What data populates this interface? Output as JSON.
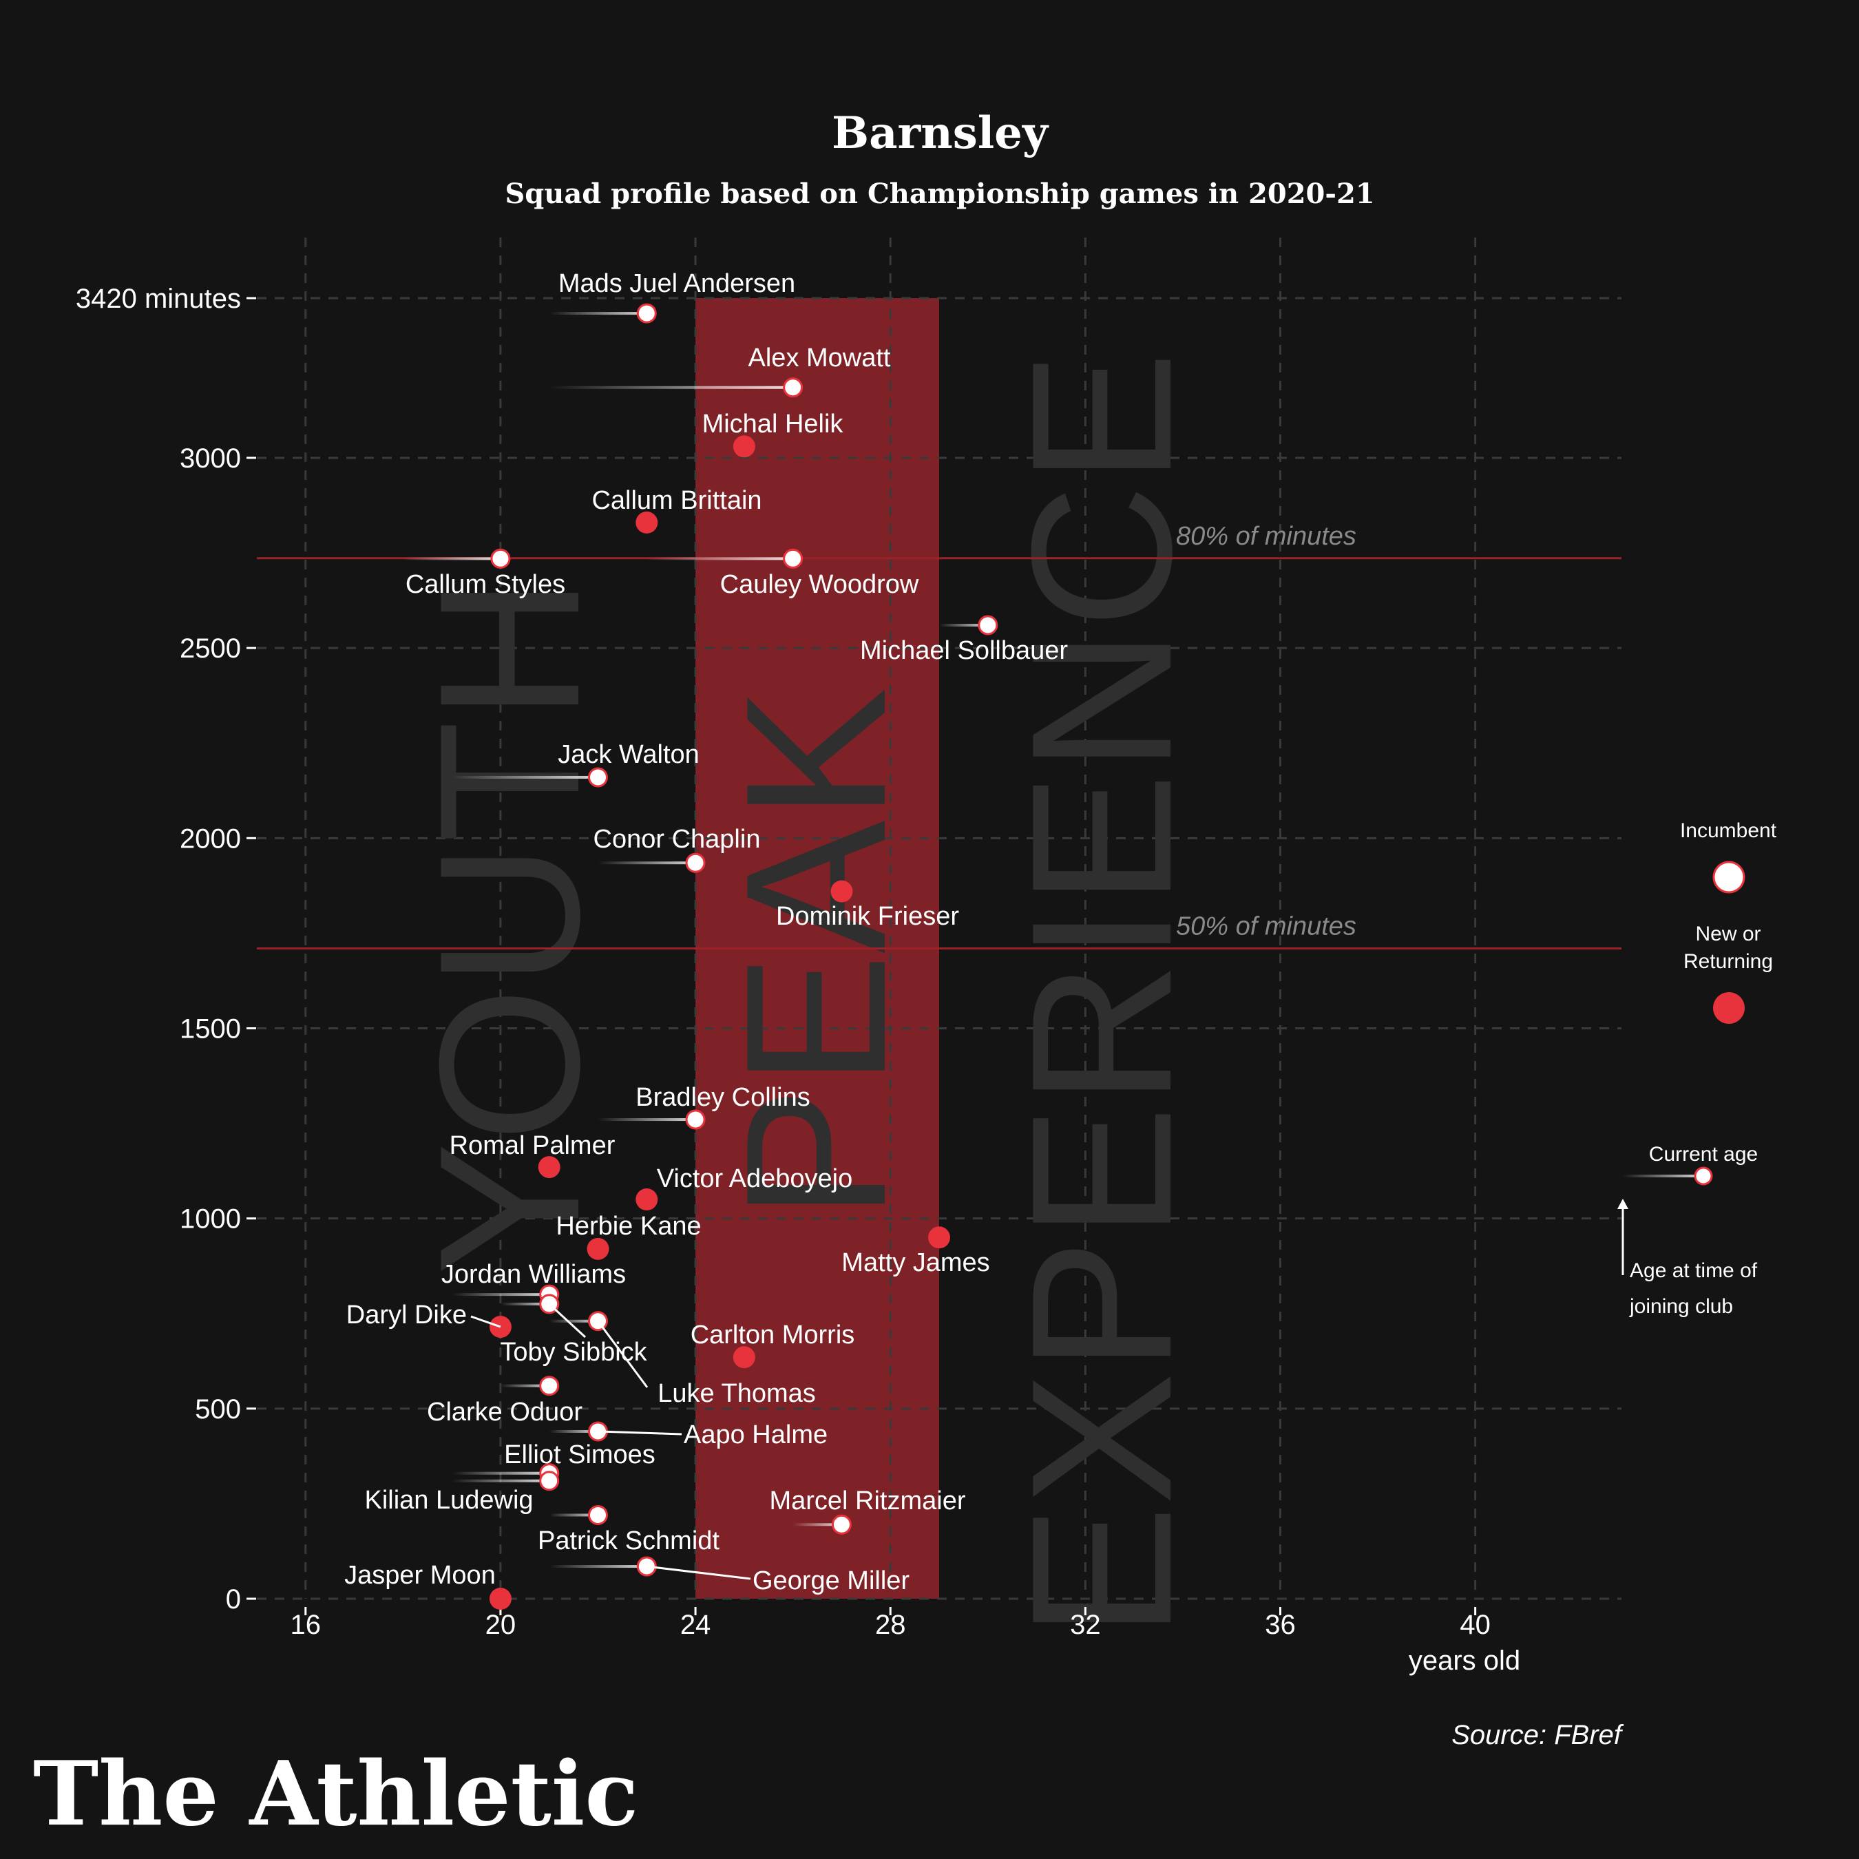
{
  "title": "Barnsley",
  "subtitle": "Squad profile based on Championship games in 2020-21",
  "source": "Source: FBref",
  "brand": "The Athletic",
  "colors": {
    "background": "#141414",
    "new_or_returning": "#e8323c",
    "incumbent": "#ffffff",
    "peak_band": "#7f2227",
    "reference_line": "#9b2228",
    "grid": "#3a3a3a"
  },
  "zones": {
    "youth": "YOUTH",
    "peak": "PEAK",
    "experience": "EXPERIENCE"
  },
  "legend": {
    "incumbent": "Incumbent",
    "new_line1": "New or",
    "new_line2": "Returning",
    "current_age": "Current age",
    "joining_line1": "Age at time of",
    "joining_line2": "joining club"
  },
  "chart_data": {
    "type": "scatter",
    "title": "Barnsley",
    "subtitle": "Squad profile based on Championship games in 2020-21",
    "xlabel": "years old",
    "ylabel": "",
    "xlim": [
      15,
      43
    ],
    "ylim": [
      0,
      3420
    ],
    "x_ticks": [
      16,
      20,
      24,
      28,
      32,
      36,
      40
    ],
    "x_tick_labels": [
      "16",
      "20",
      "24",
      "28",
      "32",
      "36",
      "40"
    ],
    "y_ticks": [
      0,
      500,
      1000,
      1500,
      2000,
      2500,
      3000,
      3420
    ],
    "y_tick_labels": [
      "0",
      "500",
      "1000",
      "1500",
      "2000",
      "2500",
      "3000",
      "3420 minutes"
    ],
    "grid": true,
    "legend_position": "right",
    "peak_band": [
      24,
      29
    ],
    "reference_lines": [
      {
        "label": "80% of minutes",
        "y": 2736
      },
      {
        "label": "50% of minutes",
        "y": 1710
      }
    ],
    "series": [
      {
        "name": "Incumbent",
        "points": [
          {
            "player": "Mads Juel Andersen",
            "age": 23,
            "joined_age": 21,
            "minutes": 3380
          },
          {
            "player": "Alex Mowatt",
            "age": 26,
            "joined_age": 21,
            "minutes": 3185
          },
          {
            "player": "Callum Styles",
            "age": 20,
            "joined_age": 18,
            "minutes": 2735
          },
          {
            "player": "Cauley Woodrow",
            "age": 26,
            "joined_age": 23,
            "minutes": 2735
          },
          {
            "player": "Michael Sollbauer",
            "age": 30,
            "joined_age": 29,
            "minutes": 2560
          },
          {
            "player": "Jack Walton",
            "age": 22,
            "joined_age": 19,
            "minutes": 2160
          },
          {
            "player": "Conor Chaplin",
            "age": 24,
            "joined_age": 22,
            "minutes": 1935
          },
          {
            "player": "Bradley Collins",
            "age": 24,
            "joined_age": 22,
            "minutes": 1260
          },
          {
            "player": "Jordan Williams",
            "age": 21,
            "joined_age": 19,
            "minutes": 800
          },
          {
            "player": "Toby Sibbick",
            "age": 21,
            "joined_age": 20,
            "minutes": 775
          },
          {
            "player": "Luke Thomas",
            "age": 22,
            "joined_age": 21,
            "minutes": 730
          },
          {
            "player": "Clarke Oduor",
            "age": 21,
            "joined_age": 20,
            "minutes": 560
          },
          {
            "player": "Aapo Halme",
            "age": 22,
            "joined_age": 21,
            "minutes": 440
          },
          {
            "player": "Elliot Simoes",
            "age": 21,
            "joined_age": 19,
            "minutes": 330
          },
          {
            "player": "Kilian Ludewig",
            "age": 21,
            "joined_age": 19,
            "minutes": 310
          },
          {
            "player": "Marcel Ritzmaier",
            "age": 27,
            "joined_age": 26,
            "minutes": 195
          },
          {
            "player": "Patrick Schmidt",
            "age": 22,
            "joined_age": 21,
            "minutes": 220
          },
          {
            "player": "George Miller",
            "age": 23,
            "joined_age": 21,
            "minutes": 85
          }
        ]
      },
      {
        "name": "New or Returning",
        "points": [
          {
            "player": "Michal Helik",
            "age": 25,
            "minutes": 3030
          },
          {
            "player": "Callum Brittain",
            "age": 23,
            "minutes": 2830
          },
          {
            "player": "Dominik Frieser",
            "age": 27,
            "minutes": 1860
          },
          {
            "player": "Romal Palmer",
            "age": 21,
            "minutes": 1135
          },
          {
            "player": "Victor Adeboyejo",
            "age": 23,
            "minutes": 1050
          },
          {
            "player": "Herbie Kane",
            "age": 22,
            "minutes": 920
          },
          {
            "player": "Matty James",
            "age": 29,
            "minutes": 950
          },
          {
            "player": "Daryl Dike",
            "age": 20,
            "minutes": 715
          },
          {
            "player": "Carlton Morris",
            "age": 25,
            "minutes": 635
          },
          {
            "player": "Jasper Moon",
            "age": 20,
            "minutes": 0
          }
        ]
      }
    ]
  }
}
